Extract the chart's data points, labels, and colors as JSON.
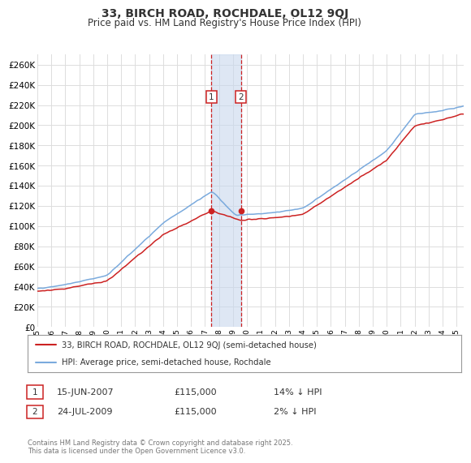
{
  "title": "33, BIRCH ROAD, ROCHDALE, OL12 9QJ",
  "subtitle": "Price paid vs. HM Land Registry's House Price Index (HPI)",
  "ylim": [
    0,
    270000
  ],
  "yticks": [
    0,
    20000,
    40000,
    60000,
    80000,
    100000,
    120000,
    140000,
    160000,
    180000,
    200000,
    220000,
    240000,
    260000
  ],
  "xlim": [
    1995,
    2025.5
  ],
  "background_color": "#ffffff",
  "grid_color": "#dddddd",
  "hpi_color": "#7aaadd",
  "price_color": "#cc2222",
  "sale1_date": 2007.46,
  "sale1_price": 115000,
  "sale2_date": 2009.56,
  "sale2_price": 115000,
  "shade_color": "#c8d8ee",
  "legend1_label": "33, BIRCH ROAD, ROCHDALE, OL12 9QJ (semi-detached house)",
  "legend2_label": "HPI: Average price, semi-detached house, Rochdale",
  "annotation1_date": "15-JUN-2007",
  "annotation1_price": "£115,000",
  "annotation1_hpi": "14% ↓ HPI",
  "annotation2_date": "24-JUL-2009",
  "annotation2_price": "£115,000",
  "annotation2_hpi": "2% ↓ HPI",
  "footer": "Contains HM Land Registry data © Crown copyright and database right 2025.\nThis data is licensed under the Open Government Licence v3.0.",
  "title_fontsize": 10,
  "subtitle_fontsize": 8.5
}
